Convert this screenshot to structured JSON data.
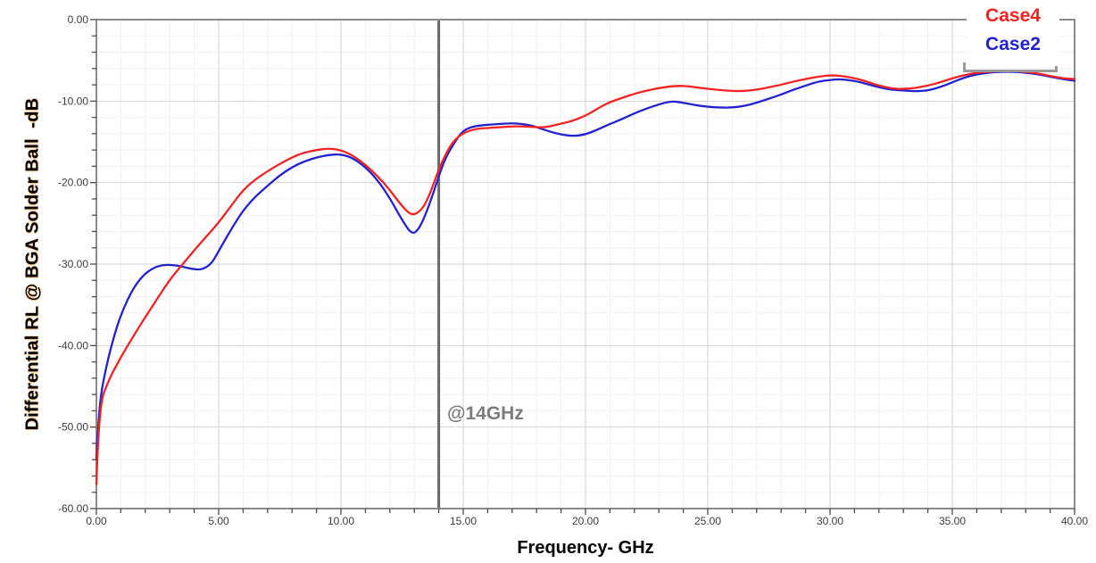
{
  "chart_data": {
    "type": "line",
    "title": "",
    "xlabel": "Frequency- GHz",
    "ylabel": "Differential RL @ BGA Solder Ball  -dB",
    "xlim": [
      0,
      40
    ],
    "ylim": [
      -60,
      0
    ],
    "grid": true,
    "x_major_ticks": [
      0,
      5,
      10,
      15,
      20,
      25,
      30,
      35,
      40
    ],
    "x_tick_labels": [
      "0.00",
      "5.00",
      "10.00",
      "15.00",
      "20.00",
      "25.00",
      "30.00",
      "35.00",
      "40.00"
    ],
    "x_minor_step": 1,
    "y_major_ticks": [
      0,
      -10,
      -20,
      -30,
      -40,
      -50,
      -60
    ],
    "y_tick_labels": [
      "0.00",
      "-10.00",
      "-20.00",
      "-30.00",
      "-40.00",
      "-50.00",
      "-60.00"
    ],
    "y_minor_step": 2,
    "legend": {
      "position": "top-right"
    },
    "marker_line": {
      "x": 14,
      "color": "#686868"
    },
    "annotation": {
      "text": "@14GHz",
      "at_x_ghz": 14,
      "color": "#7d7d7d"
    },
    "series": [
      {
        "name": "Case4",
        "color": "#f52222",
        "points": [
          [
            0,
            -57
          ],
          [
            0.1,
            -47.5
          ],
          [
            0.5,
            -44.2
          ],
          [
            1,
            -41.4
          ],
          [
            1.5,
            -38.9
          ],
          [
            2,
            -36.5
          ],
          [
            2.5,
            -34.2
          ],
          [
            3,
            -31.9
          ],
          [
            3.5,
            -30.1
          ],
          [
            4,
            -28.3
          ],
          [
            4.5,
            -26.6
          ],
          [
            5,
            -24.9
          ],
          [
            5.5,
            -22.9
          ],
          [
            6,
            -20.9
          ],
          [
            6.5,
            -19.6
          ],
          [
            7,
            -18.6
          ],
          [
            7.5,
            -17.7
          ],
          [
            8,
            -16.9
          ],
          [
            8.5,
            -16.3
          ],
          [
            9,
            -16
          ],
          [
            9.5,
            -15.8
          ],
          [
            10,
            -16
          ],
          [
            10.5,
            -16.7
          ],
          [
            11,
            -17.8
          ],
          [
            11.5,
            -19.2
          ],
          [
            12,
            -20.9
          ],
          [
            12.5,
            -22.9
          ],
          [
            12.9,
            -24.1
          ],
          [
            13.3,
            -23.4
          ],
          [
            13.6,
            -21.7
          ],
          [
            14,
            -18.4
          ],
          [
            14.3,
            -16.4
          ],
          [
            14.6,
            -14.9
          ],
          [
            15,
            -13.9
          ],
          [
            15.5,
            -13.4
          ],
          [
            16,
            -13.3
          ],
          [
            16.5,
            -13.2
          ],
          [
            17,
            -13.1
          ],
          [
            17.5,
            -13.1
          ],
          [
            18,
            -13.2
          ],
          [
            18.4,
            -13.2
          ],
          [
            18.8,
            -12.9
          ],
          [
            19.4,
            -12.5
          ],
          [
            20,
            -11.8
          ],
          [
            20.5,
            -10.9
          ],
          [
            21,
            -10.1
          ],
          [
            21.5,
            -9.6
          ],
          [
            22,
            -9.1
          ],
          [
            22.5,
            -8.7
          ],
          [
            23,
            -8.4
          ],
          [
            23.7,
            -8.1
          ],
          [
            24.3,
            -8.2
          ],
          [
            25,
            -8.5
          ],
          [
            25.7,
            -8.7
          ],
          [
            26.3,
            -8.8
          ],
          [
            27,
            -8.6
          ],
          [
            27.5,
            -8.3
          ],
          [
            28,
            -8
          ],
          [
            28.5,
            -7.6
          ],
          [
            29,
            -7.3
          ],
          [
            29.5,
            -7
          ],
          [
            30.1,
            -6.8
          ],
          [
            30.7,
            -7
          ],
          [
            31.3,
            -7.4
          ],
          [
            32,
            -8.1
          ],
          [
            32.6,
            -8.5
          ],
          [
            33,
            -8.5
          ],
          [
            33.5,
            -8.4
          ],
          [
            34,
            -8.1
          ],
          [
            34.5,
            -7.7
          ],
          [
            35,
            -7.2
          ],
          [
            35.5,
            -6.8
          ],
          [
            36,
            -6.5
          ],
          [
            36.5,
            -6.4
          ],
          [
            37,
            -6.3
          ],
          [
            37.5,
            -6.3
          ],
          [
            38,
            -6.4
          ],
          [
            38.5,
            -6.6
          ],
          [
            39,
            -6.9
          ],
          [
            39.5,
            -7.2
          ],
          [
            40,
            -7.3
          ]
        ]
      },
      {
        "name": "Case2",
        "color": "#2222cf",
        "points": [
          [
            0,
            -54
          ],
          [
            0.1,
            -47.5
          ],
          [
            0.4,
            -42.5
          ],
          [
            0.8,
            -38
          ],
          [
            1.1,
            -35.5
          ],
          [
            1.5,
            -33
          ],
          [
            1.9,
            -31.4
          ],
          [
            2.3,
            -30.5
          ],
          [
            2.7,
            -30.1
          ],
          [
            3.1,
            -30.1
          ],
          [
            3.5,
            -30.3
          ],
          [
            3.9,
            -30.6
          ],
          [
            4.3,
            -30.7
          ],
          [
            4.7,
            -30
          ],
          [
            5,
            -28.4
          ],
          [
            5.5,
            -25.8
          ],
          [
            6,
            -23.4
          ],
          [
            6.5,
            -21.7
          ],
          [
            7,
            -20.4
          ],
          [
            7.5,
            -19.1
          ],
          [
            8,
            -18.1
          ],
          [
            8.5,
            -17.4
          ],
          [
            9,
            -16.9
          ],
          [
            9.5,
            -16.6
          ],
          [
            10,
            -16.5
          ],
          [
            10.5,
            -17
          ],
          [
            11,
            -18.1
          ],
          [
            11.5,
            -19.7
          ],
          [
            12,
            -21.9
          ],
          [
            12.5,
            -24.6
          ],
          [
            12.9,
            -26.4
          ],
          [
            13.2,
            -25.7
          ],
          [
            13.6,
            -22.9
          ],
          [
            14,
            -19.2
          ],
          [
            14.3,
            -16.8
          ],
          [
            14.7,
            -14.8
          ],
          [
            15,
            -13.6
          ],
          [
            15.4,
            -13.1
          ],
          [
            16,
            -12.9
          ],
          [
            16.5,
            -12.8
          ],
          [
            17,
            -12.7
          ],
          [
            17.4,
            -12.8
          ],
          [
            17.8,
            -13
          ],
          [
            18.2,
            -13.4
          ],
          [
            18.6,
            -13.8
          ],
          [
            19,
            -14.1
          ],
          [
            19.5,
            -14.3
          ],
          [
            20,
            -14.1
          ],
          [
            20.5,
            -13.5
          ],
          [
            21,
            -12.8
          ],
          [
            21.5,
            -12.2
          ],
          [
            22,
            -11.5
          ],
          [
            22.5,
            -10.9
          ],
          [
            23,
            -10.4
          ],
          [
            23.5,
            -10
          ],
          [
            24,
            -10.2
          ],
          [
            24.5,
            -10.5
          ],
          [
            25,
            -10.7
          ],
          [
            25.5,
            -10.8
          ],
          [
            26,
            -10.8
          ],
          [
            26.5,
            -10.6
          ],
          [
            27,
            -10.2
          ],
          [
            27.5,
            -9.7
          ],
          [
            28,
            -9.2
          ],
          [
            28.5,
            -8.6
          ],
          [
            29,
            -8.1
          ],
          [
            29.5,
            -7.6
          ],
          [
            30,
            -7.4
          ],
          [
            30.4,
            -7.3
          ],
          [
            31,
            -7.5
          ],
          [
            31.5,
            -7.9
          ],
          [
            32,
            -8.3
          ],
          [
            32.5,
            -8.6
          ],
          [
            33,
            -8.7
          ],
          [
            33.5,
            -8.8
          ],
          [
            34,
            -8.7
          ],
          [
            34.5,
            -8.3
          ],
          [
            35,
            -7.7
          ],
          [
            35.5,
            -7.1
          ],
          [
            36,
            -6.7
          ],
          [
            36.5,
            -6.5
          ],
          [
            37,
            -6.4
          ],
          [
            37.5,
            -6.4
          ],
          [
            38,
            -6.5
          ],
          [
            38.5,
            -6.7
          ],
          [
            39,
            -7
          ],
          [
            39.5,
            -7.3
          ],
          [
            40,
            -7.5
          ]
        ]
      }
    ],
    "colors": {
      "grid_minor": "#f0f0f0",
      "grid_major": "#d2d2d2",
      "frame": "#8a8a8a",
      "tick": "#4a4a4a",
      "tick_label": "#3c3c3c",
      "background": "#ffffff"
    }
  }
}
